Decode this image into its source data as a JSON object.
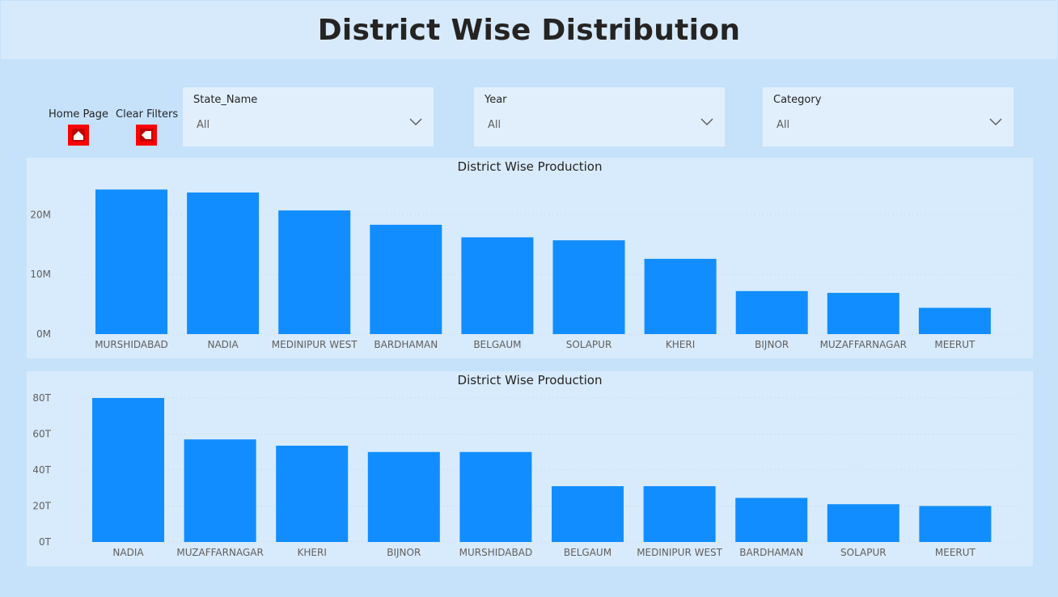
{
  "header": {
    "title": "District Wise Distribution"
  },
  "nav": {
    "home_label": "Home Page",
    "clear_label": "Clear Filters"
  },
  "slicers": [
    {
      "title": "State_Name",
      "value": "All"
    },
    {
      "title": "Year",
      "value": "All"
    },
    {
      "title": "Category",
      "value": "All"
    }
  ],
  "colors": {
    "bar": "#118dff",
    "button": "#ff0000"
  },
  "chart_data": [
    {
      "type": "bar",
      "title": "District Wise Production",
      "categories": [
        "MURSHIDABAD",
        "NADIA",
        "MEDINIPUR WEST",
        "BARDHAMAN",
        "BELGAUM",
        "SOLAPUR",
        "KHERI",
        "BIJNOR",
        "MUZAFFARNAGAR",
        "MEERUT"
      ],
      "values": [
        24.2,
        23.7,
        20.7,
        18.3,
        16.2,
        15.7,
        12.6,
        7.2,
        6.9,
        4.4
      ],
      "value_unit": "M",
      "yticks": [
        0,
        10,
        20
      ],
      "ytick_labels": [
        "0M",
        "10M",
        "20M"
      ],
      "ylim": [
        0,
        26
      ],
      "grid": true
    },
    {
      "type": "bar",
      "title": "District Wise Production",
      "categories": [
        "NADIA",
        "MUZAFFARNAGAR",
        "KHERI",
        "BIJNOR",
        "MURSHIDABAD",
        "BELGAUM",
        "MEDINIPUR WEST",
        "BARDHAMAN",
        "SOLAPUR",
        "MEERUT"
      ],
      "values": [
        80,
        57,
        53.5,
        50,
        50,
        31,
        31,
        24.5,
        21,
        20
      ],
      "value_unit": "T",
      "yticks": [
        0,
        20,
        40,
        60,
        80
      ],
      "ytick_labels": [
        "0T",
        "20T",
        "40T",
        "60T",
        "80T"
      ],
      "ylim": [
        0,
        80
      ],
      "grid": true
    }
  ]
}
